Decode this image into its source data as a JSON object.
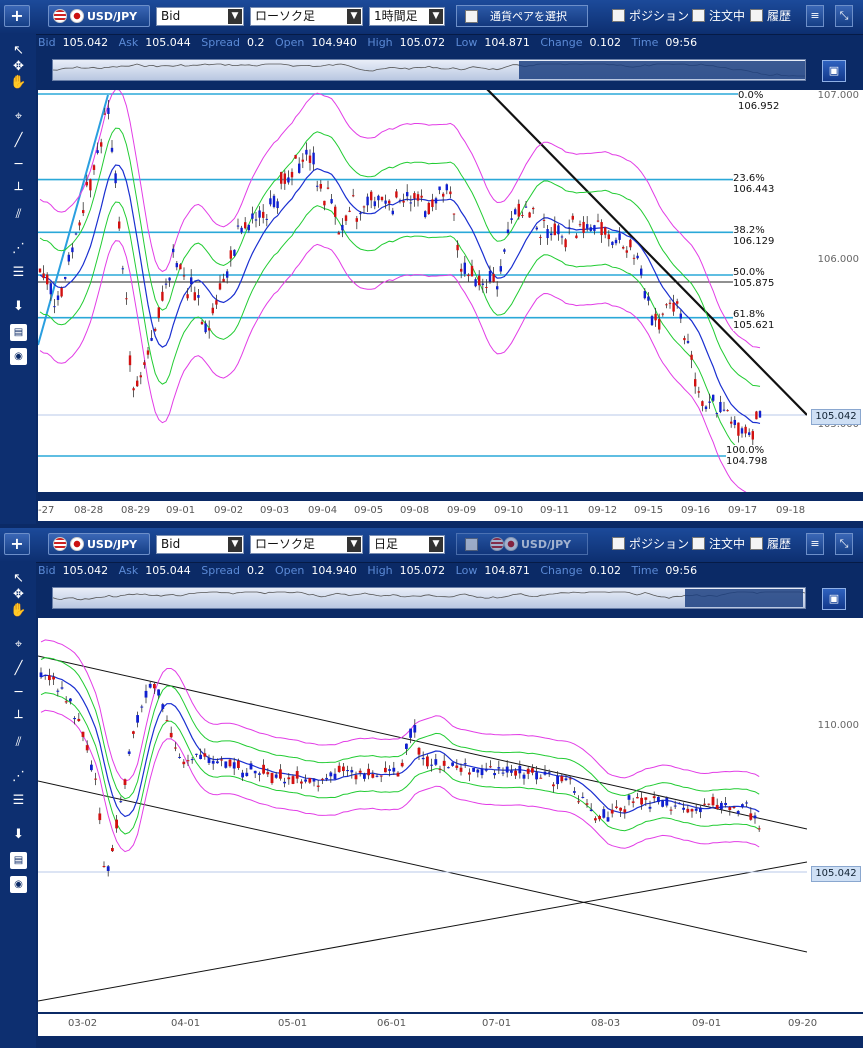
{
  "panels": [
    {
      "pair": "USD/JPY",
      "price_type": "Bid",
      "chart_type": "ローソク足",
      "timeframe": "1時間足",
      "select_pair_label": "通貨ペアを選択",
      "info": {
        "bid_label": "Bid",
        "bid": "105.042",
        "ask_label": "Ask",
        "ask": "105.044",
        "spread_label": "Spread",
        "spread": "0.2",
        "open_label": "Open",
        "open": "104.940",
        "high_label": "High",
        "high": "105.072",
        "low_label": "Low",
        "low": "104.871",
        "change_label": "Change",
        "change": "0.102",
        "time_label": "Time",
        "time": "09:56"
      },
      "y_ticks": [
        "107.000",
        "106.000",
        "105.000"
      ],
      "x_ticks": [
        "-27",
        "08-28",
        "08-29",
        "09-01",
        "09-02",
        "09-03",
        "09-04",
        "09-05",
        "09-08",
        "09-09",
        "09-10",
        "09-11",
        "09-12",
        "09-15",
        "09-16",
        "09-17",
        "09-18"
      ],
      "current_price": "105.042",
      "fib_labels": [
        "0.0%  106.952",
        "23.6%  106.443",
        "38.2%  106.129",
        "50.0%  105.875",
        "61.8%  105.621",
        "100.0%  104.798"
      ]
    },
    {
      "pair": "USD/JPY",
      "price_type": "Bid",
      "chart_type": "ローソク足",
      "timeframe": "日足",
      "select_pair_label": "USD/JPY",
      "info": {
        "bid_label": "Bid",
        "bid": "105.042",
        "ask_label": "Ask",
        "ask": "105.044",
        "spread_label": "Spread",
        "spread": "0.2",
        "open_label": "Open",
        "open": "104.940",
        "high_label": "High",
        "high": "105.072",
        "low_label": "Low",
        "low": "104.871",
        "change_label": "Change",
        "change": "0.102",
        "time_label": "Time",
        "time": "09:56"
      },
      "y_ticks": [
        "110.000"
      ],
      "x_ticks": [
        "03-02",
        "04-01",
        "05-01",
        "06-01",
        "07-01",
        "08-03",
        "09-01",
        "09-20"
      ],
      "current_price": "105.042"
    }
  ],
  "common": {
    "position_label": "ポジション",
    "orders_label": "注文中",
    "history_label": "履歴",
    "plus_label": "+"
  },
  "colors": {
    "toolbar": "#163f86",
    "bg": "#0b2a66",
    "fib": "#2aa8d8",
    "bb_outer": "#e23de6",
    "bb_inner": "#22cc33",
    "ma": "#1a2fd0",
    "bull": "#d21010",
    "bear": "#1020d0"
  }
}
